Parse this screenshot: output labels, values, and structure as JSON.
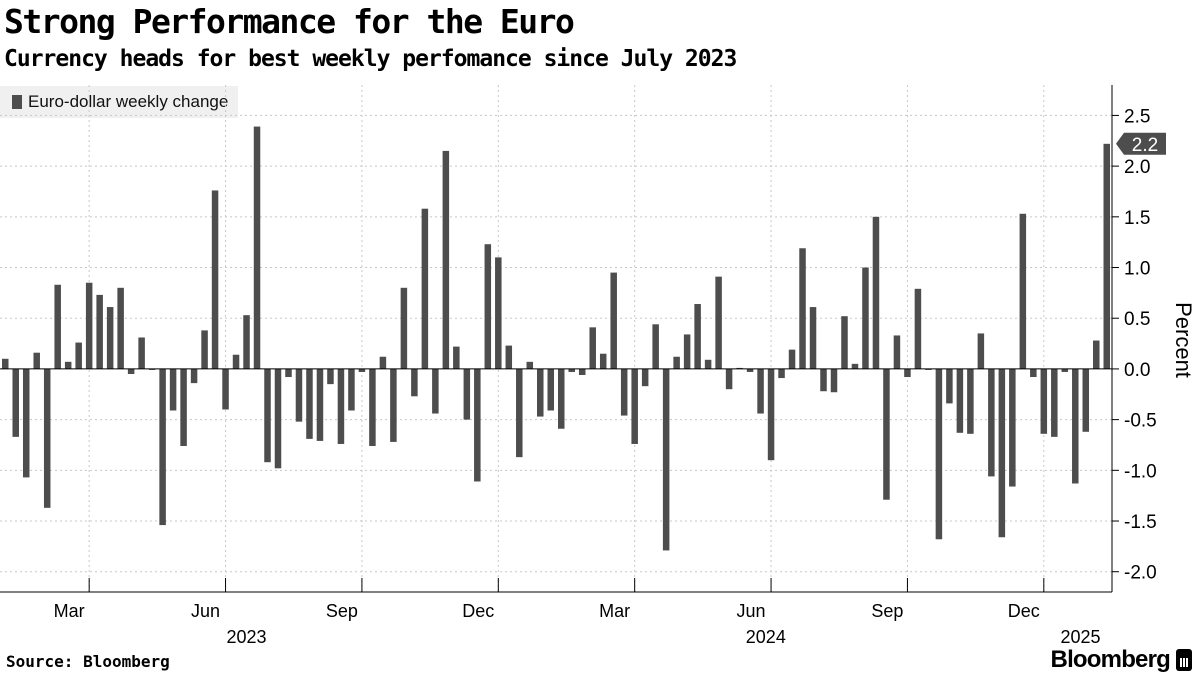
{
  "title": "Strong Performance for the Euro",
  "subtitle": "Currency heads for best weekly perfomance since July 2023",
  "source": "Source: Bloomberg",
  "brand": "Bloomberg",
  "colors": {
    "bar": "#4d4d4d",
    "grid": "#c8c8c8",
    "legend_bg": "#f0f0f0"
  },
  "chart_data": {
    "type": "bar",
    "legend": [
      "Euro-dollar weekly change"
    ],
    "ylabel": "Percent",
    "ylim": [
      -2.2,
      2.8
    ],
    "yticks": [
      "2.5",
      "2.0",
      "1.5",
      "1.0",
      "0.5",
      "0.0",
      "-0.5",
      "-1.0",
      "-1.5",
      "-2.0"
    ],
    "ytick_values": [
      2.5,
      2.0,
      1.5,
      1.0,
      0.5,
      0.0,
      -0.5,
      -1.0,
      -1.5,
      -2.0
    ],
    "y_axis_side": "right",
    "grid": true,
    "x_month_ticks": [
      "Mar",
      "Jun",
      "Sep",
      "Dec",
      "Mar",
      "Jun",
      "Sep",
      "Dec"
    ],
    "x_month_tick_week_index": [
      8.5,
      21.5,
      34.5,
      47.5,
      60.5,
      73.5,
      86.5,
      99.5
    ],
    "x_year_labels": [
      "2023",
      "2024",
      "2025"
    ],
    "x_year_label_week_index": [
      23.5,
      73,
      103
    ],
    "last_value_label": "2.2",
    "series": [
      {
        "name": "Euro-dollar weekly change",
        "values": [
          0.1,
          -0.67,
          -1.07,
          0.16,
          -1.37,
          0.83,
          0.07,
          0.26,
          0.85,
          0.73,
          0.61,
          0.8,
          -0.05,
          0.31,
          -0.01,
          -1.54,
          -0.41,
          -0.76,
          -0.14,
          0.38,
          1.76,
          -0.4,
          0.14,
          0.53,
          2.39,
          -0.92,
          -0.98,
          -0.08,
          -0.52,
          -0.69,
          -0.71,
          -0.15,
          -0.74,
          -0.41,
          -0.03,
          -0.76,
          0.12,
          -0.72,
          0.8,
          -0.27,
          1.58,
          -0.44,
          2.15,
          0.22,
          -0.5,
          -1.11,
          1.23,
          1.1,
          0.23,
          -0.87,
          0.07,
          -0.47,
          -0.41,
          -0.59,
          -0.03,
          -0.06,
          0.41,
          0.15,
          0.95,
          -0.46,
          -0.74,
          -0.17,
          0.44,
          -1.79,
          0.12,
          0.34,
          0.64,
          0.09,
          0.91,
          -0.2,
          0.01,
          -0.03,
          -0.44,
          -0.9,
          -0.09,
          0.19,
          1.19,
          0.61,
          -0.22,
          -0.23,
          0.52,
          0.05,
          1.0,
          1.5,
          -1.29,
          0.33,
          -0.08,
          0.79,
          -0.01,
          -1.68,
          -0.34,
          -0.63,
          -0.64,
          0.35,
          -1.06,
          -1.66,
          -1.16,
          1.53,
          -0.08,
          -0.64,
          -0.67,
          -0.03,
          -1.13,
          -0.62,
          0.28,
          2.22
        ]
      }
    ]
  }
}
